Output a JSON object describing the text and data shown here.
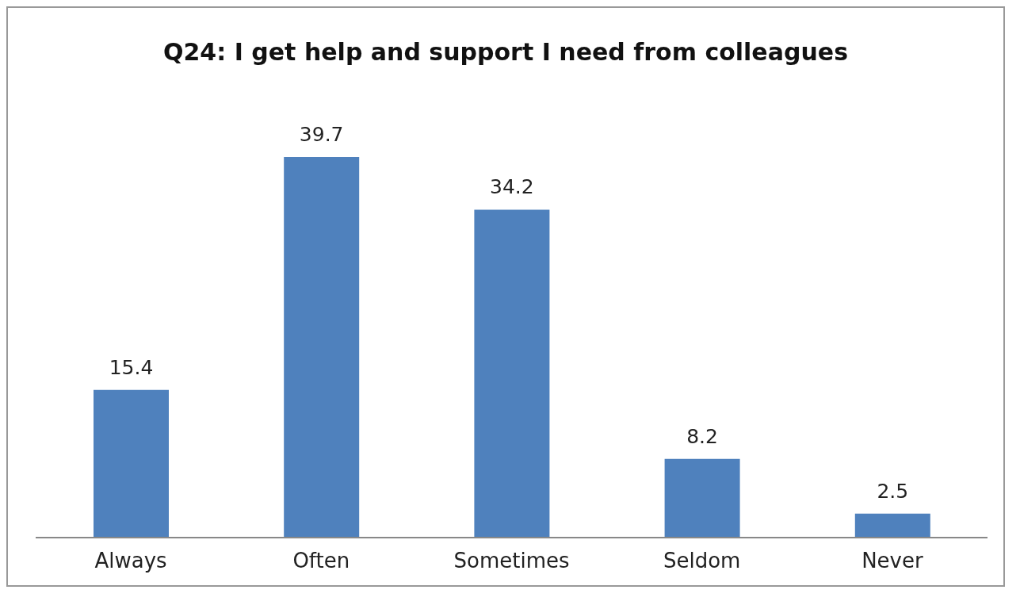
{
  "chart_data": {
    "type": "bar",
    "title": "Q24: I get help and support I need from colleagues",
    "categories": [
      "Always",
      "Often",
      "Sometimes",
      "Seldom",
      "Never"
    ],
    "values": [
      15.4,
      39.7,
      34.2,
      8.2,
      2.5
    ],
    "color": "#4f81bd",
    "data_labels": true
  }
}
